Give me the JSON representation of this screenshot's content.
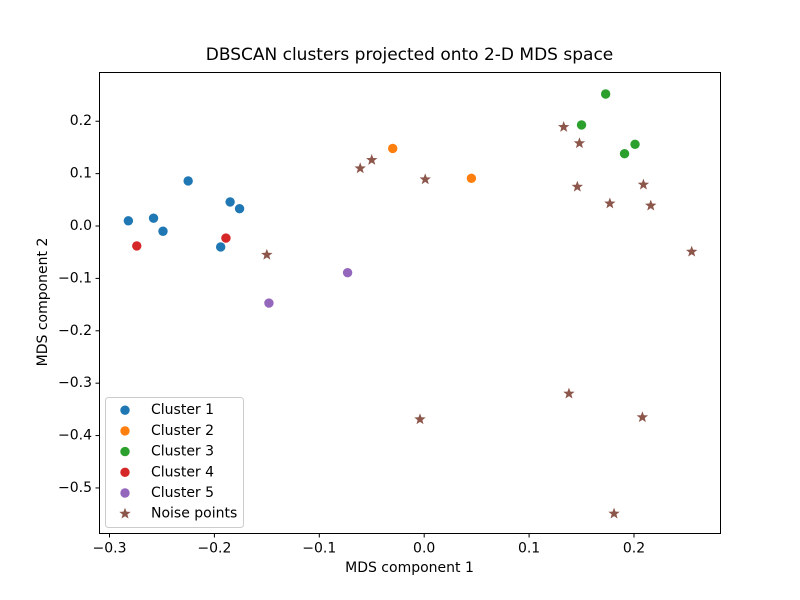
{
  "chart_data": {
    "type": "scatter",
    "title": "DBSCAN clusters projected onto 2-D MDS space",
    "xlabel": "MDS component 1",
    "ylabel": "MDS component 2",
    "xlim": [
      -0.31,
      0.282
    ],
    "ylim": [
      -0.586,
      0.294
    ],
    "grid": false,
    "legend_position": "lower left",
    "xticks": [
      {
        "value": -0.3,
        "label": "−0.3"
      },
      {
        "value": -0.2,
        "label": "−0.2"
      },
      {
        "value": -0.1,
        "label": "−0.1"
      },
      {
        "value": 0.0,
        "label": "0.0"
      },
      {
        "value": 0.1,
        "label": "0.1"
      },
      {
        "value": 0.2,
        "label": "0.2"
      }
    ],
    "yticks": [
      {
        "value": 0.2,
        "label": "0.2"
      },
      {
        "value": 0.1,
        "label": "0.1"
      },
      {
        "value": 0.0,
        "label": "0.0"
      },
      {
        "value": -0.1,
        "label": "−0.1"
      },
      {
        "value": -0.2,
        "label": "−0.2"
      },
      {
        "value": -0.3,
        "label": "−0.3"
      },
      {
        "value": -0.4,
        "label": "−0.4"
      },
      {
        "value": -0.5,
        "label": "−0.5"
      }
    ],
    "series": [
      {
        "name": "Cluster 1",
        "color": "#1f77b4",
        "marker": "circle",
        "points": [
          [
            -0.282,
            0.01
          ],
          [
            -0.258,
            0.015
          ],
          [
            -0.249,
            -0.01
          ],
          [
            -0.225,
            0.086
          ],
          [
            -0.185,
            0.046
          ],
          [
            -0.176,
            0.033
          ],
          [
            -0.194,
            -0.04
          ]
        ]
      },
      {
        "name": "Cluster 2",
        "color": "#ff7f0e",
        "marker": "circle",
        "points": [
          [
            -0.03,
            0.148
          ],
          [
            0.045,
            0.091
          ]
        ]
      },
      {
        "name": "Cluster 3",
        "color": "#2ca02c",
        "marker": "circle",
        "points": [
          [
            0.173,
            0.252
          ],
          [
            0.15,
            0.193
          ],
          [
            0.201,
            0.156
          ],
          [
            0.191,
            0.138
          ]
        ]
      },
      {
        "name": "Cluster 4",
        "color": "#d62728",
        "marker": "circle",
        "points": [
          [
            -0.274,
            -0.038
          ],
          [
            -0.189,
            -0.023
          ]
        ]
      },
      {
        "name": "Cluster 5",
        "color": "#9467bd",
        "marker": "circle",
        "points": [
          [
            -0.073,
            -0.089
          ],
          [
            -0.148,
            -0.147
          ]
        ]
      },
      {
        "name": "Noise points",
        "color": "#8c564b",
        "marker": "star",
        "points": [
          [
            -0.15,
            -0.055
          ],
          [
            -0.061,
            0.11
          ],
          [
            -0.05,
            0.126
          ],
          [
            0.001,
            0.089
          ],
          [
            0.133,
            0.189
          ],
          [
            0.148,
            0.158
          ],
          [
            0.146,
            0.075
          ],
          [
            0.209,
            0.079
          ],
          [
            0.177,
            0.043
          ],
          [
            0.216,
            0.039
          ],
          [
            0.255,
            -0.049
          ],
          [
            0.138,
            -0.32
          ],
          [
            -0.004,
            -0.369
          ],
          [
            0.208,
            -0.365
          ],
          [
            0.181,
            -0.549
          ]
        ]
      }
    ],
    "colors": {
      "spine": "#000000",
      "tick_text": "#000000",
      "legend_border": "#cccccc",
      "legend_background": "#ffffff"
    }
  }
}
